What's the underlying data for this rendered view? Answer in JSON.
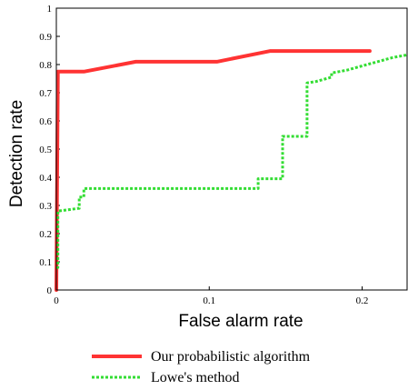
{
  "chart_data": {
    "type": "line",
    "title": "",
    "xlabel": "False alarm rate",
    "ylabel": "Detection rate",
    "xlim": [
      0,
      0.23
    ],
    "ylim": [
      0,
      1
    ],
    "x_ticks": [
      0,
      0.1,
      0.2
    ],
    "x_tick_labels": [
      "0",
      "0.1",
      "0.2"
    ],
    "y_ticks": [
      0,
      0.1,
      0.2,
      0.3,
      0.4,
      0.5,
      0.6,
      0.7,
      0.8,
      0.9,
      1
    ],
    "y_tick_labels": [
      "0",
      "0.1",
      "0.2",
      "0.3",
      "0.4",
      "0.5",
      "0.6",
      "0.7",
      "0.8",
      "0.9",
      "1"
    ],
    "grid": false,
    "legend_position": "bottom",
    "series": [
      {
        "name": "Our probabilistic algorithm",
        "color": "#ff3333",
        "style": "solid",
        "x": [
          0,
          0.001,
          0.018,
          0.052,
          0.105,
          0.14,
          0.205
        ],
        "y": [
          0,
          0.775,
          0.775,
          0.81,
          0.81,
          0.848,
          0.848
        ]
      },
      {
        "name": "Lowe's method",
        "color": "#33dd33",
        "style": "dashed",
        "x": [
          0,
          0.001,
          0.001,
          0.015,
          0.015,
          0.018,
          0.018,
          0.132,
          0.132,
          0.148,
          0.148,
          0.164,
          0.164,
          0.17,
          0.18,
          0.18,
          0.19,
          0.2,
          0.21,
          0.22,
          0.23
        ],
        "y": [
          0.08,
          0.08,
          0.28,
          0.29,
          0.33,
          0.33,
          0.36,
          0.36,
          0.395,
          0.395,
          0.545,
          0.545,
          0.735,
          0.74,
          0.755,
          0.77,
          0.78,
          0.795,
          0.81,
          0.825,
          0.835
        ]
      }
    ]
  }
}
